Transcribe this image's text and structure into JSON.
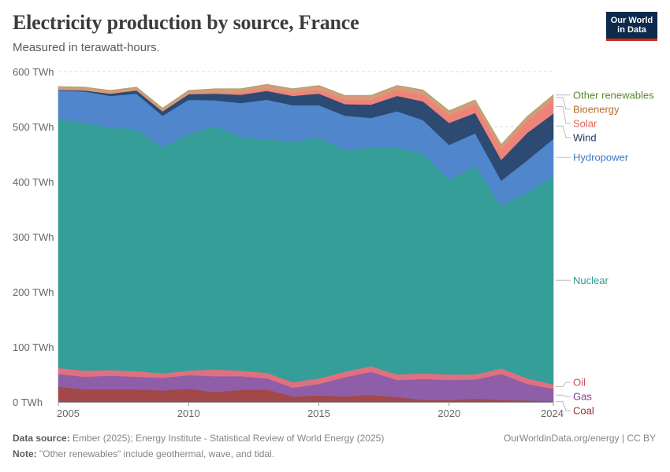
{
  "header": {
    "title": "Electricity production by source, France",
    "subtitle": "Measured in terawatt-hours."
  },
  "logo": {
    "line1": "Our World",
    "line2": "in Data"
  },
  "footer": {
    "source_label": "Data source:",
    "source_text": "Ember (2025); Energy Institute - Statistical Review of World Energy (2025)",
    "note_label": "Note:",
    "note_text": "\"Other renewables\" include geothermal, wave, and tidal.",
    "credit": "OurWorldinData.org/energy | CC BY"
  },
  "chart_data": {
    "type": "area",
    "stacked": true,
    "title": "Electricity production by source, France",
    "subtitle": "Measured in terawatt-hours.",
    "unit": "TWh",
    "ylim": [
      0,
      600
    ],
    "yticks": [
      0,
      100,
      200,
      300,
      400,
      500,
      600
    ],
    "ytick_labels": [
      "0 TWh",
      "100 TWh",
      "200 TWh",
      "300 TWh",
      "400 TWh",
      "500 TWh",
      "600 TWh"
    ],
    "xlim": [
      2005,
      2024
    ],
    "xticks": [
      2005,
      2010,
      2015,
      2020,
      2024
    ],
    "grid": "horizontal dashed",
    "legend": "right, labels at series ends",
    "x": [
      2005,
      2006,
      2007,
      2008,
      2009,
      2010,
      2011,
      2012,
      2013,
      2014,
      2015,
      2016,
      2017,
      2018,
      2019,
      2020,
      2021,
      2022,
      2023,
      2024
    ],
    "series": [
      {
        "name": "Coal",
        "color": "#b13507",
        "values": [
          28,
          23,
          23,
          23,
          21,
          24,
          18,
          22,
          23,
          10,
          12,
          10,
          13,
          9,
          4,
          4,
          6,
          4,
          3,
          1
        ]
      },
      {
        "name": "Gas",
        "color": "#883039",
        "values": [
          23,
          23,
          25,
          23,
          23,
          25,
          29,
          25,
          20,
          16,
          21,
          35,
          42,
          31,
          38,
          36,
          35,
          47,
          30,
          23
        ]
      },
      {
        "name": "Oil",
        "color": "#e56e5a",
        "values": [
          11,
          11,
          10,
          10,
          8,
          8,
          12,
          10,
          10,
          10,
          10,
          10,
          10,
          10,
          10,
          10,
          9,
          10,
          10,
          8
        ]
      },
      {
        "name": "Nuclear",
        "color": "#00847e",
        "values": [
          452,
          450,
          440,
          440,
          410,
          430,
          442,
          425,
          424,
          437,
          437,
          403,
          398,
          412,
          400,
          353,
          379,
          296,
          338,
          378
        ]
      },
      {
        "name": "Hydropower",
        "color": "#4c6a9c",
        "values": [
          52,
          57,
          58,
          64,
          58,
          62,
          47,
          61,
          72,
          66,
          59,
          62,
          53,
          66,
          60,
          64,
          59,
          45,
          58,
          68
        ]
      },
      {
        "name": "Wind",
        "color": "#3360a9",
        "values": [
          1,
          2,
          4,
          6,
          8,
          10,
          12,
          15,
          16,
          17,
          21,
          21,
          24,
          28,
          34,
          40,
          37,
          38,
          50,
          46
        ]
      },
      {
        "name": "Solar",
        "color": "#ec7e74",
        "values": [
          0,
          0,
          0,
          0,
          0,
          1,
          2,
          4,
          5,
          6,
          7,
          8,
          9,
          11,
          12,
          13,
          15,
          19,
          21,
          25
        ]
      },
      {
        "name": "Bioenergy",
        "color": "#c8793b",
        "values": [
          5,
          5,
          5,
          5,
          5,
          5,
          6,
          6,
          6,
          6,
          7,
          7,
          7,
          7,
          8,
          8,
          8,
          8,
          8,
          8
        ]
      },
      {
        "name": "Other renewables",
        "color": "#6d9738",
        "values": [
          1,
          1,
          1,
          1,
          1,
          1,
          1,
          1,
          1,
          1,
          1,
          1,
          1,
          1,
          1,
          1,
          1,
          1,
          1,
          1
        ]
      }
    ],
    "legend_text_colors": {
      "Other renewables": "#5c8a2c",
      "Bioenergy": "#b66b2f",
      "Solar": "#e06354",
      "Wind": "#1f3b62",
      "Hydropower": "#3a77c8",
      "Nuclear": "#2a9d94",
      "Oil": "#d1495f",
      "Gas": "#7e3a8e",
      "Coal": "#9e2b2b"
    },
    "fill_colors": {
      "Coal": "#a34848",
      "Gas": "#8f5ea8",
      "Oil": "#e07080",
      "Nuclear": "#369e98",
      "Hydropower": "#4f86cc",
      "Wind": "#2c4a72",
      "Solar": "#ee8479",
      "Bioenergy": "#d59b78",
      "Other renewables": "#aea56f"
    }
  }
}
